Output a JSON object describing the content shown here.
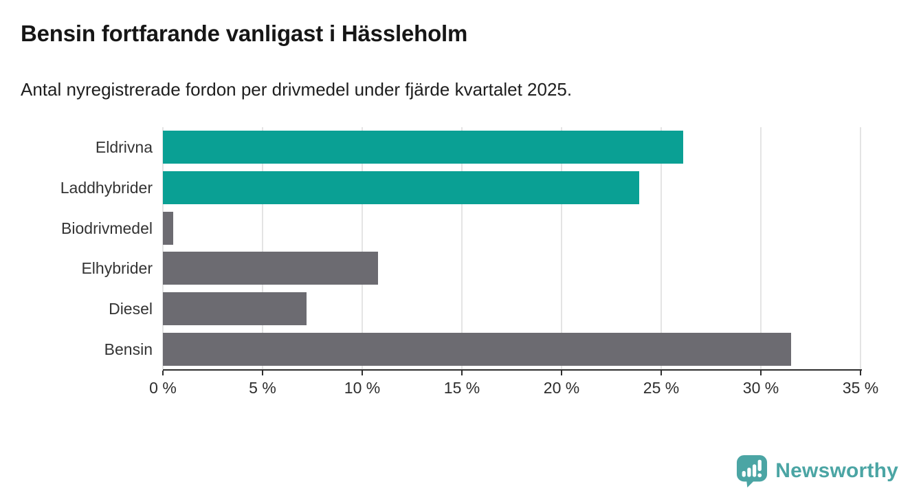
{
  "header": {
    "title": "Bensin fortfarande vanligast i Hässleholm",
    "subtitle": "Antal nyregistrerade fordon per drivmedel under fjärde kvartalet 2025."
  },
  "chart_data": {
    "type": "bar",
    "orientation": "horizontal",
    "title": "Bensin fortfarande vanligast i Hässleholm",
    "subtitle": "Antal nyregistrerade fordon per drivmedel under fjärde kvartalet 2025.",
    "categories": [
      "Eldrivna",
      "Laddhybrider",
      "Biodrivmedel",
      "Elhybrider",
      "Diesel",
      "Bensin"
    ],
    "values": [
      26.1,
      23.9,
      0.5,
      10.8,
      7.2,
      31.5
    ],
    "bar_colors": [
      "#0aa094",
      "#0aa094",
      "#6c6b71",
      "#6c6b71",
      "#6c6b71",
      "#6c6b71"
    ],
    "unit": "%",
    "xlim": [
      0,
      35
    ],
    "x_ticks": [
      0,
      5,
      10,
      15,
      20,
      25,
      30,
      35
    ],
    "x_tick_labels": [
      "0 %",
      "5 %",
      "10 %",
      "15 %",
      "20 %",
      "25 %",
      "30 %",
      "35 %"
    ],
    "grid": "vertical",
    "legend": "none"
  },
  "colors": {
    "accent_teal": "#0aa094",
    "neutral_gray": "#6c6b71",
    "gridline": "#e4e4e4",
    "axis": "#2d2d2d",
    "label_text": "#333333",
    "logo_teal": "#4ba5a4"
  },
  "footer": {
    "brand": "Newsworthy"
  }
}
